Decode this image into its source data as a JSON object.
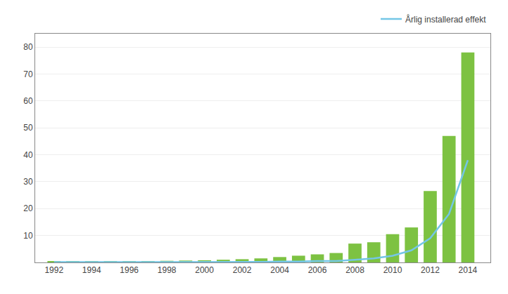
{
  "chart_data": {
    "type": "bar",
    "x": [
      1992,
      1993,
      1994,
      1995,
      1996,
      1997,
      1998,
      1999,
      2000,
      2001,
      2002,
      2003,
      2004,
      2005,
      2006,
      2007,
      2008,
      2009,
      2010,
      2011,
      2012,
      2013,
      2014
    ],
    "series": [
      {
        "type": "bar",
        "color": "#7DC242",
        "values": [
          0.3,
          0.3,
          0.4,
          0.4,
          0.5,
          0.5,
          0.6,
          0.7,
          0.8,
          1.0,
          1.2,
          1.5,
          2.0,
          2.5,
          3.0,
          3.5,
          7.0,
          7.5,
          10.5,
          13.0,
          26.5,
          47.0,
          78.0
        ]
      },
      {
        "type": "line",
        "name": "Årlig installerad effekt",
        "color": "#74C6E6",
        "values": [
          0.1,
          0.1,
          0.1,
          0.1,
          0.1,
          0.1,
          0.1,
          0.1,
          0.1,
          0.1,
          0.2,
          0.2,
          0.3,
          0.3,
          0.5,
          0.5,
          1.0,
          1.5,
          2.5,
          4.5,
          9.0,
          18.0,
          38.0
        ]
      }
    ],
    "xlim": [
      1991.0,
      2015.2
    ],
    "xticks": [
      1992,
      1994,
      1996,
      1998,
      2000,
      2002,
      2004,
      2006,
      2008,
      2010,
      2012,
      2014
    ],
    "ylim": [
      0,
      85
    ],
    "yticks": [
      10,
      20,
      30,
      40,
      50,
      60,
      70,
      80
    ],
    "grid": true,
    "legend": "upper right"
  }
}
